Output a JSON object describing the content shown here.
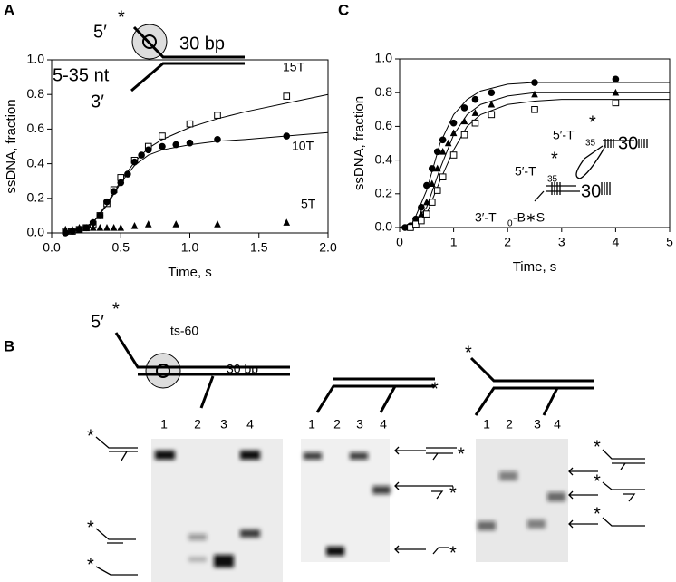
{
  "panels": [
    "A",
    "B",
    "C"
  ],
  "chart_data": [
    {
      "type": "scatter",
      "xlabel": "Time, s",
      "ylabel": "ssDNA, fraction",
      "xlim": [
        0,
        2
      ],
      "ylim": [
        0,
        1
      ],
      "xticks": [
        {
          "value": 0,
          "label": "0.0"
        },
        {
          "value": 0.5,
          "label": "0.5"
        },
        {
          "value": 1,
          "label": "1.0"
        },
        {
          "value": 1.5,
          "label": "1.5"
        },
        {
          "value": 2,
          "label": "2.0"
        }
      ],
      "yticks": [
        {
          "value": 0,
          "label": "0.0"
        },
        {
          "value": 0.2,
          "label": "0.2"
        },
        {
          "value": 0.4,
          "label": "0.4"
        },
        {
          "value": 0.6,
          "label": "0.6"
        },
        {
          "value": 0.8,
          "label": "0.8"
        },
        {
          "value": 1,
          "label": "1.0"
        }
      ],
      "series": [
        {
          "name": "15T",
          "marker": "square-open",
          "color": "#000000",
          "x": [
            0.1,
            0.15,
            0.2,
            0.25,
            0.3,
            0.35,
            0.4,
            0.45,
            0.5,
            0.6,
            0.7,
            0.8,
            1.0,
            1.2,
            1.7
          ],
          "values": [
            0.01,
            0.01,
            0.02,
            0.03,
            0.05,
            0.1,
            0.17,
            0.25,
            0.32,
            0.42,
            0.5,
            0.56,
            0.63,
            0.68,
            0.79
          ],
          "fit_x": [
            0.1,
            0.2,
            0.3,
            0.4,
            0.5,
            0.6,
            0.7,
            0.8,
            1.0,
            1.2,
            1.4,
            1.7,
            2.0
          ],
          "fit_values": [
            0.01,
            0.02,
            0.06,
            0.17,
            0.3,
            0.41,
            0.49,
            0.54,
            0.61,
            0.66,
            0.7,
            0.75,
            0.8
          ]
        },
        {
          "name": "10T",
          "marker": "circle",
          "color": "#000000",
          "x": [
            0.1,
            0.15,
            0.2,
            0.25,
            0.3,
            0.35,
            0.4,
            0.45,
            0.5,
            0.55,
            0.6,
            0.65,
            0.7,
            0.8,
            0.9,
            1.0,
            1.2,
            1.7
          ],
          "values": [
            0.0,
            0.01,
            0.02,
            0.03,
            0.06,
            0.1,
            0.18,
            0.24,
            0.29,
            0.34,
            0.41,
            0.45,
            0.48,
            0.5,
            0.51,
            0.52,
            0.54,
            0.56
          ],
          "fit_x": [
            0.1,
            0.2,
            0.3,
            0.4,
            0.5,
            0.6,
            0.7,
            0.8,
            1.0,
            1.2,
            1.4,
            1.7,
            2.0
          ],
          "fit_values": [
            0.0,
            0.02,
            0.06,
            0.16,
            0.29,
            0.39,
            0.45,
            0.48,
            0.51,
            0.53,
            0.54,
            0.56,
            0.58
          ]
        },
        {
          "name": "5T",
          "marker": "triangle",
          "color": "#000000",
          "x": [
            0.1,
            0.15,
            0.2,
            0.25,
            0.3,
            0.35,
            0.4,
            0.45,
            0.5,
            0.6,
            0.7,
            0.9,
            1.2,
            1.7
          ],
          "values": [
            0.02,
            0.02,
            0.03,
            0.03,
            0.03,
            0.03,
            0.03,
            0.03,
            0.03,
            0.04,
            0.05,
            0.05,
            0.05,
            0.06
          ]
        }
      ]
    },
    {
      "type": "scatter",
      "xlabel": "Time, s",
      "ylabel": "ssDNA, fraction",
      "xlim": [
        0,
        5
      ],
      "ylim": [
        0,
        1
      ],
      "xticks": [
        0,
        1,
        2,
        3,
        4,
        5
      ],
      "yticks": [
        {
          "value": 0,
          "label": "0.0"
        },
        {
          "value": 0.2,
          "label": "0.2"
        },
        {
          "value": 0.4,
          "label": "0.4"
        },
        {
          "value": 0.6,
          "label": "0.6"
        },
        {
          "value": 0.8,
          "label": "0.8"
        },
        {
          "value": 1,
          "label": "1.0"
        }
      ],
      "series": [
        {
          "marker": "circle",
          "color": "#000000",
          "x": [
            0.1,
            0.2,
            0.3,
            0.4,
            0.5,
            0.6,
            0.7,
            0.8,
            1.0,
            1.2,
            1.4,
            1.7,
            2.5,
            4.0
          ],
          "values": [
            0.0,
            0.01,
            0.05,
            0.12,
            0.25,
            0.35,
            0.45,
            0.52,
            0.62,
            0.71,
            0.76,
            0.8,
            0.86,
            0.88
          ],
          "fit_x": [
            0,
            0.25,
            0.5,
            0.75,
            1,
            1.25,
            1.5,
            2,
            2.5,
            3,
            4,
            5
          ],
          "fit_values": [
            0,
            0.03,
            0.22,
            0.5,
            0.67,
            0.76,
            0.81,
            0.85,
            0.86,
            0.86,
            0.86,
            0.86
          ]
        },
        {
          "marker": "triangle",
          "color": "#000000",
          "x": [
            0.2,
            0.3,
            0.4,
            0.5,
            0.6,
            0.7,
            0.8,
            0.9,
            1.0,
            1.2,
            1.4,
            1.7,
            2.5,
            4.0
          ],
          "values": [
            0.01,
            0.03,
            0.08,
            0.15,
            0.26,
            0.35,
            0.45,
            0.5,
            0.56,
            0.63,
            0.68,
            0.73,
            0.79,
            0.8
          ],
          "fit_x": [
            0,
            0.25,
            0.5,
            0.75,
            1,
            1.25,
            1.5,
            2,
            2.5,
            3,
            4,
            5
          ],
          "fit_values": [
            0,
            0.02,
            0.12,
            0.35,
            0.55,
            0.67,
            0.73,
            0.78,
            0.8,
            0.8,
            0.8,
            0.8
          ]
        },
        {
          "marker": "square-open",
          "color": "#000000",
          "x": [
            0.2,
            0.3,
            0.4,
            0.5,
            0.6,
            0.7,
            0.8,
            1.0,
            1.2,
            1.4,
            1.7,
            2.5,
            4.0
          ],
          "values": [
            0.0,
            0.02,
            0.04,
            0.08,
            0.15,
            0.22,
            0.3,
            0.43,
            0.55,
            0.62,
            0.67,
            0.7,
            0.74
          ],
          "fit_x": [
            0,
            0.25,
            0.5,
            0.75,
            1,
            1.25,
            1.5,
            2,
            2.5,
            3,
            4,
            5
          ],
          "fit_values": [
            0,
            0.01,
            0.08,
            0.28,
            0.46,
            0.6,
            0.67,
            0.73,
            0.75,
            0.76,
            0.76,
            0.76
          ]
        }
      ]
    }
  ],
  "diagram_a": {
    "five_prime": "5′",
    "star": "*",
    "duplex": "30 bp",
    "overhang": "5-35 nt",
    "three_prime": "3′"
  },
  "diagram_c": {
    "top": [
      "5′-T",
      "35",
      "*",
      "30"
    ],
    "bottom": [
      "5′-T",
      "35",
      "*",
      "30"
    ],
    "base": [
      "3′-T",
      "0",
      "-B∗S"
    ]
  },
  "diagram_b": {
    "five_prime": "5′",
    "star": "*",
    "trap": "ts-60",
    "duplex": "30 bp",
    "star2": "*",
    "star3": "*"
  },
  "gels": [
    {
      "lanes": [
        "1",
        "2",
        "3",
        "4"
      ],
      "markers": [
        "*",
        "*",
        "*"
      ]
    },
    {
      "lanes": [
        "1",
        "2",
        "3",
        "4"
      ],
      "markers": [
        "*",
        "*",
        "*"
      ]
    },
    {
      "lanes": [
        "1",
        "2",
        "3",
        "4"
      ],
      "markers": [
        "*",
        "*",
        "*"
      ]
    }
  ]
}
